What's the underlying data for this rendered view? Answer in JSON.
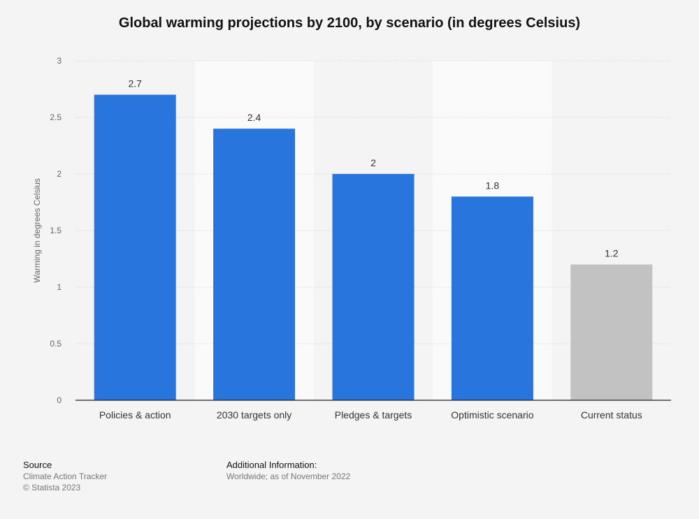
{
  "title": "Global warming projections by 2100, by scenario (in degrees Celsius)",
  "chart_data": {
    "type": "bar",
    "title": "Global warming projections by 2100, by scenario (in degrees Celsius)",
    "xlabel": "",
    "ylabel": "Warming in degrees Celsius",
    "categories": [
      "Policies & action",
      "2030 targets only",
      "Pledges & targets",
      "Optimistic scenario",
      "Current status"
    ],
    "values": [
      2.7,
      2.4,
      2,
      1.8,
      1.2
    ],
    "value_labels": [
      "2.7",
      "2.4",
      "2",
      "1.8",
      "1.2"
    ],
    "ylim": [
      0,
      3
    ],
    "yticks": [
      0,
      0.5,
      1,
      1.5,
      2,
      2.5,
      3
    ],
    "ytick_labels": [
      "0",
      "0.5",
      "1",
      "1.5",
      "2",
      "2.5",
      "3"
    ],
    "grid": true,
    "bar_colors": [
      "#2876dd",
      "#2876dd",
      "#2876dd",
      "#2876dd",
      "#c2c2c2"
    ]
  },
  "footer": {
    "source_label": "Source",
    "source_name": "Climate Action Tracker",
    "copyright": "© Statista 2023",
    "additional_label": "Additional Information:",
    "additional_text": "Worldwide; as of November 2022"
  }
}
